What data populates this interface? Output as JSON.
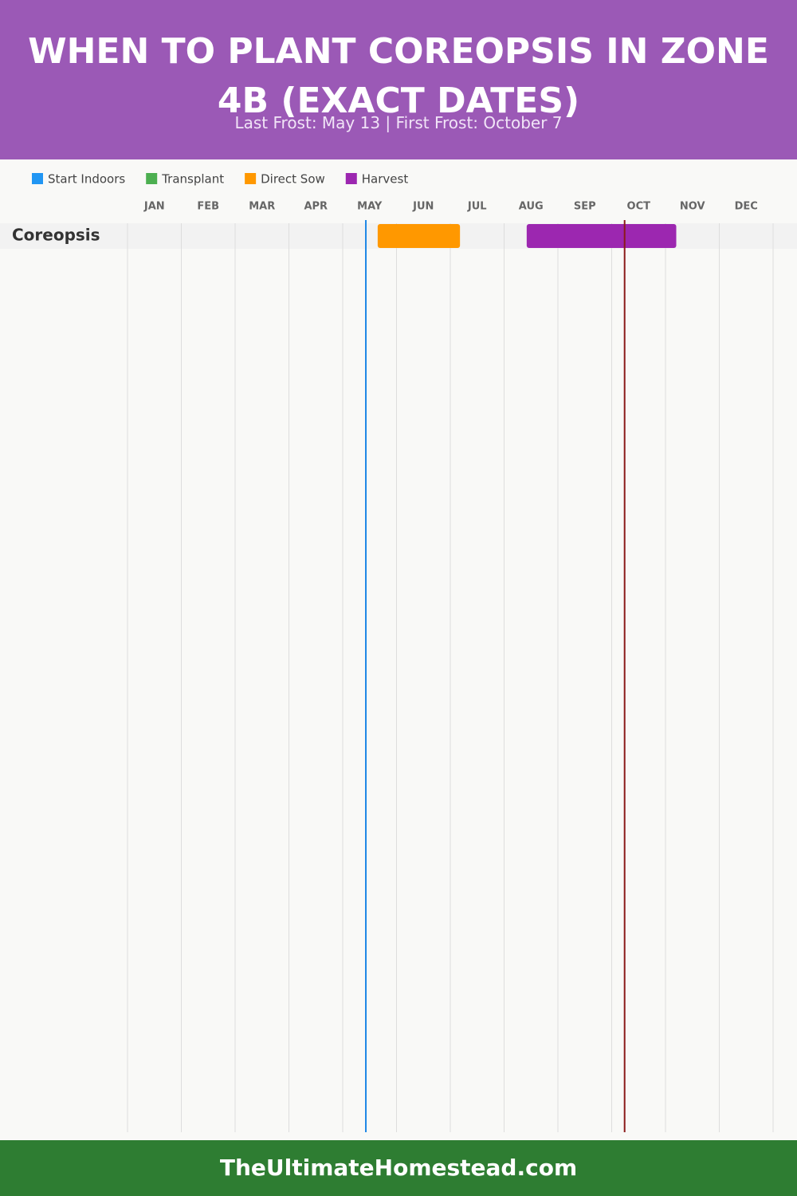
{
  "chart_data": {
    "type": "gantt",
    "title": "WHEN TO PLANT COREOPSIS IN ZONE 4B (EXACT DATES)",
    "subtitle": "Last Frost: May 13 | First Frost: October 7",
    "series": [
      {
        "name": "Start Indoors",
        "color": "#2196f3"
      },
      {
        "name": "Transplant",
        "color": "#4caf50"
      },
      {
        "name": "Direct Sow",
        "color": "#ff9800"
      },
      {
        "name": "Harvest",
        "color": "#9c27b0"
      }
    ],
    "xlim": [
      0,
      12
    ],
    "xticks": [
      {
        "value": 0,
        "label": "JAN"
      },
      {
        "value": 1,
        "label": "FEB"
      },
      {
        "value": 2,
        "label": "MAR"
      },
      {
        "value": 3,
        "label": "APR"
      },
      {
        "value": 4,
        "label": "MAY"
      },
      {
        "value": 5,
        "label": "JUN"
      },
      {
        "value": 6,
        "label": "JUL"
      },
      {
        "value": 7,
        "label": "AUG"
      },
      {
        "value": 8,
        "label": "SEP"
      },
      {
        "value": 9,
        "label": "OCT"
      },
      {
        "value": 10,
        "label": "NOV"
      },
      {
        "value": 11,
        "label": "DEC"
      }
    ],
    "grid": true,
    "rows": [
      {
        "label": "Coreopsis",
        "spans": [
          {
            "series": 2,
            "start": 4.65,
            "end": 6.18
          },
          {
            "series": 3,
            "start": 7.42,
            "end": 10.2
          }
        ]
      }
    ],
    "markers": [
      {
        "value": 4.43,
        "color": "#1e88e5"
      },
      {
        "value": 9.24,
        "color": "#8b1a1a"
      }
    ],
    "footer": "TheUltimateHomestead.com"
  }
}
